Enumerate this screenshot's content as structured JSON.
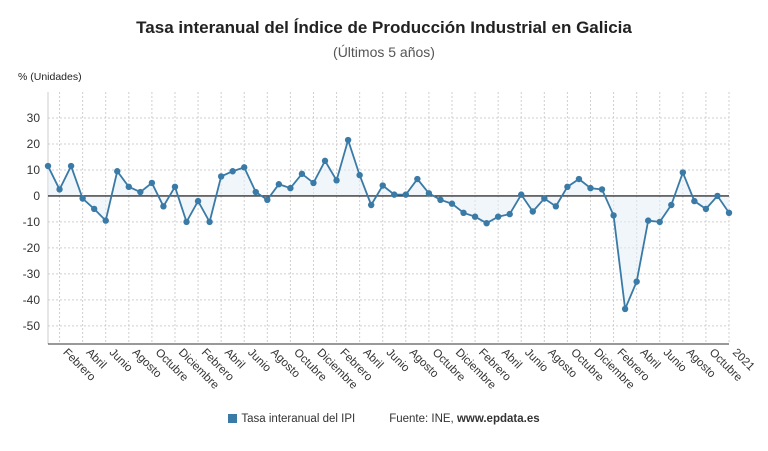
{
  "chart_data": {
    "type": "line",
    "title": "Tasa interanual del Índice de Producción Industrial en Galicia",
    "subtitle": "(Últimos 5 años)",
    "ylabel": "% (Unidades)",
    "ylim": [
      -57,
      40
    ],
    "yticks": [
      30,
      20,
      10,
      0,
      -10,
      -20,
      -30,
      -40,
      -50
    ],
    "grid": true,
    "legend_position": "bottom",
    "x_tick_labels": [
      "Febrero",
      "Abril",
      "Junio",
      "Agosto",
      "Octubre",
      "Diciembre",
      "Febrero",
      "Abril",
      "Junio",
      "Agosto",
      "Octubre",
      "Diciembre",
      "Febrero",
      "Abril",
      "Junio",
      "Agosto",
      "Octubre",
      "Diciembre",
      "Febrero",
      "Abril",
      "Junio",
      "Agosto",
      "Octubre",
      "Diciembre",
      "Febrero",
      "Abril",
      "Junio",
      "Agosto",
      "Octubre",
      "2021"
    ],
    "series": [
      {
        "name": "Tasa interanual del IPI",
        "color": "#3a7aa6",
        "values": [
          11.5,
          2.5,
          11.5,
          -1,
          -5,
          -9.5,
          9.5,
          3.5,
          1.5,
          5,
          -4,
          3.5,
          -10,
          -2,
          -10,
          7.5,
          9.5,
          11,
          1.5,
          -1.5,
          4.5,
          3,
          8.5,
          5,
          13.5,
          6,
          21.5,
          8,
          -3.5,
          4,
          0.5,
          0.5,
          6.5,
          1,
          -1.5,
          -3,
          -6.5,
          -8,
          -10.5,
          -8,
          -7,
          0.5,
          -6,
          -1,
          -4,
          3.5,
          6.5,
          3,
          2.5,
          -7.5,
          -43.5,
          -33,
          -9.5,
          -10,
          -3.5,
          9,
          -2,
          -5,
          0,
          -6.5
        ]
      }
    ]
  },
  "legend": {
    "series_label": "Tasa interanual del IPI",
    "source_prefix": "Fuente: INE, ",
    "source_site": "www.epdata.es"
  }
}
